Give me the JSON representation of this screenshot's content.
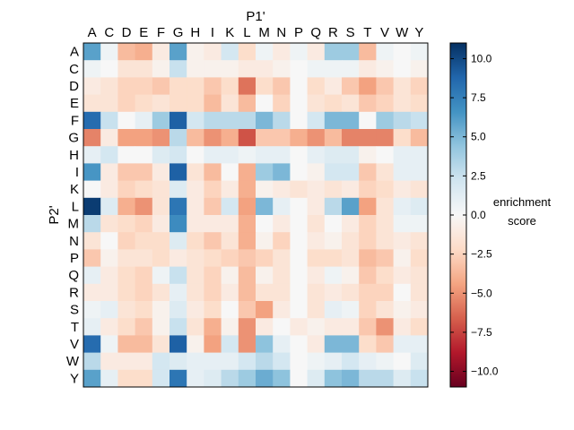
{
  "chart_data": {
    "type": "heatmap",
    "title": "",
    "xlabel": "P1'",
    "ylabel": "P2'",
    "x_categories": [
      "A",
      "C",
      "D",
      "E",
      "F",
      "G",
      "H",
      "I",
      "K",
      "L",
      "M",
      "N",
      "P",
      "Q",
      "R",
      "S",
      "T",
      "V",
      "W",
      "Y"
    ],
    "y_categories": [
      "A",
      "C",
      "D",
      "E",
      "F",
      "G",
      "H",
      "I",
      "K",
      "L",
      "M",
      "N",
      "P",
      "Q",
      "R",
      "S",
      "T",
      "V",
      "W",
      "Y"
    ],
    "values": [
      [
        6,
        0.5,
        -3.5,
        -4,
        -1,
        6,
        -0.5,
        -1,
        2,
        -2,
        0.5,
        -1,
        0.5,
        -1,
        4,
        4,
        -3.5,
        0.5,
        0,
        0.5
      ],
      [
        0.5,
        0,
        -1.5,
        -1.5,
        -0.5,
        2.5,
        -0.5,
        -0.5,
        -0.5,
        -1,
        -1,
        -0.5,
        0,
        0.5,
        0.5,
        0.5,
        -1,
        -0.5,
        0,
        -0.5
      ],
      [
        -1,
        -1.5,
        -2.5,
        -2.5,
        -3,
        -2,
        -2,
        -3,
        -2,
        -6,
        -2,
        -3,
        0,
        -2,
        -1,
        -3,
        -4.5,
        -3,
        -1.5,
        -2.5
      ],
      [
        -1.5,
        -1.5,
        -2.5,
        -2,
        -1.5,
        -2,
        -2,
        -3.5,
        -1.5,
        -3.5,
        0,
        -2.5,
        0,
        -1.5,
        -2,
        -1.5,
        -3,
        -2.5,
        -1.5,
        -2
      ],
      [
        8.5,
        2.5,
        0,
        1,
        4,
        9,
        2,
        3,
        3,
        3,
        5,
        3,
        0,
        2,
        5,
        5,
        0,
        4,
        3,
        2.5
      ],
      [
        -5.5,
        -1,
        -4.5,
        -4.5,
        -5,
        3,
        -3.5,
        -5,
        -4,
        -7,
        -3,
        -3,
        -4,
        -5,
        -3.5,
        -5.5,
        -5.5,
        -5.5,
        -2,
        -3.5
      ],
      [
        1,
        2,
        0,
        0,
        1.5,
        2,
        0,
        1,
        1,
        0.5,
        1,
        1,
        0,
        1,
        1.5,
        1.5,
        -0.5,
        0,
        1,
        1
      ],
      [
        6.5,
        -1,
        -3,
        -3,
        -1,
        9,
        -1.5,
        -3.5,
        0,
        -4,
        4,
        5,
        0,
        -0.5,
        2,
        2,
        -3,
        -1.5,
        1,
        1
      ],
      [
        0,
        -1,
        -2.5,
        -2,
        -1.5,
        1.5,
        -1,
        -2.5,
        -1,
        -4,
        -0.5,
        -1,
        -1.5,
        -1,
        -1.5,
        -1,
        -2.5,
        -2,
        -1,
        -1.5
      ],
      [
        10.5,
        1.5,
        -4,
        -5,
        -1.5,
        8,
        -1,
        -3,
        2,
        -4.5,
        5,
        1,
        0,
        -1,
        3,
        6,
        -4.5,
        -1.5,
        1,
        1.5
      ],
      [
        3,
        -1.5,
        -2,
        -2.5,
        -1,
        7,
        -1,
        -1,
        -1,
        -4,
        0,
        -1,
        0,
        -1.5,
        0,
        -1,
        -2.5,
        -1.5,
        0.5,
        0.5
      ],
      [
        -1.5,
        0,
        -2.5,
        -2,
        -2,
        1.5,
        -2,
        -3,
        -1.5,
        -4,
        -0.5,
        -2.5,
        0,
        -1,
        -0.5,
        -1.5,
        -2.5,
        -1.5,
        -1,
        -1.5
      ],
      [
        -3,
        -0.5,
        -1.5,
        -1.5,
        -2,
        -1,
        -1.5,
        -2,
        -2.5,
        -3,
        -2.5,
        -1.5,
        0,
        -2,
        -2,
        -1.5,
        -3.5,
        -3,
        -0.5,
        -2
      ],
      [
        1,
        -1,
        -2,
        -2.5,
        0.5,
        2.5,
        -1.5,
        -2.5,
        -0.5,
        -3.5,
        -0.5,
        -1.5,
        0,
        -1,
        0.5,
        -0.5,
        -3,
        -2,
        -1,
        -1.5
      ],
      [
        -1,
        -1,
        -2,
        -2.5,
        -1.5,
        1,
        -1.5,
        -2.5,
        -1,
        -3.5,
        -1.5,
        -1.5,
        0,
        -1.5,
        -1,
        -1.5,
        -2.5,
        -2.5,
        0,
        -1.5
      ],
      [
        0.5,
        1,
        -1.5,
        -2,
        -0.5,
        1.5,
        -1,
        -2,
        0,
        -3,
        -4.5,
        -1,
        0,
        -1.5,
        1,
        0.5,
        -2.5,
        -1.5,
        -0.5,
        -1
      ],
      [
        1,
        -1,
        -2,
        -3,
        -0.5,
        2.5,
        -1.5,
        -4,
        -0.5,
        -5,
        -1,
        0,
        -1,
        -0.5,
        -1,
        -1,
        -3,
        -5,
        -1,
        -2
      ],
      [
        8.5,
        0.5,
        -3.5,
        -3.5,
        -1.5,
        9,
        -0.5,
        -4.5,
        2,
        -5,
        4.5,
        1,
        0,
        -1,
        5,
        5,
        -2,
        -3,
        1,
        1
      ],
      [
        3,
        -1,
        -1,
        -1,
        2,
        1.5,
        1,
        1,
        1,
        2,
        3,
        2,
        0,
        0.5,
        1,
        2,
        1,
        0.5,
        0,
        1.5
      ],
      [
        6,
        1,
        -2,
        -2,
        2,
        8,
        1,
        1.5,
        3,
        4,
        5.5,
        4.5,
        0,
        1.5,
        4.5,
        5,
        3,
        3,
        1.5,
        2.5
      ]
    ],
    "colorbar": {
      "label_line1": "enrichment",
      "label_line2": "score",
      "ticks": [
        10.0,
        7.5,
        5.0,
        2.5,
        0.0,
        -2.5,
        -5.0,
        -7.5,
        -10.0
      ],
      "tick_labels": [
        "10.0",
        "7.5",
        "5.0",
        "2.5",
        "0.0",
        "−2.5",
        "−5.0",
        "−7.5",
        "−10.0"
      ],
      "vmin": -11,
      "vmax": 11,
      "colormap": "RdBu_r"
    },
    "xaxis_position": "top",
    "grid": false,
    "legend": "colorbar-right"
  }
}
